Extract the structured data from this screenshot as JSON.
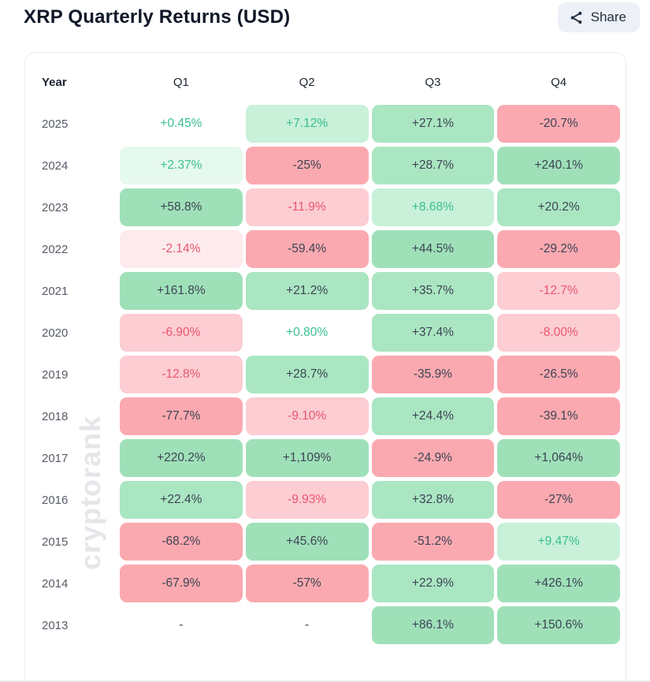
{
  "page": {
    "title": "XRP Quarterly Returns (USD)",
    "watermark": "cryptorank"
  },
  "share_button": {
    "label": "Share",
    "icon": "share-icon"
  },
  "chart_data": {
    "type": "heatmap",
    "title": "XRP Quarterly Returns (USD)",
    "columns": [
      "Year",
      "Q1",
      "Q2",
      "Q3",
      "Q4"
    ],
    "rows": [
      {
        "year": "2025",
        "cells": [
          {
            "text": "+0.45%",
            "tier": "g0"
          },
          {
            "text": "+7.12%",
            "tier": "g2"
          },
          {
            "text": "+27.1%",
            "tier": "g3"
          },
          {
            "text": "-20.7%",
            "tier": "r3"
          }
        ]
      },
      {
        "year": "2024",
        "cells": [
          {
            "text": "+2.37%",
            "tier": "g1"
          },
          {
            "text": "-25%",
            "tier": "r3"
          },
          {
            "text": "+28.7%",
            "tier": "g3"
          },
          {
            "text": "+240.1%",
            "tier": "g4"
          }
        ]
      },
      {
        "year": "2023",
        "cells": [
          {
            "text": "+58.8%",
            "tier": "g4"
          },
          {
            "text": "-11.9%",
            "tier": "r2"
          },
          {
            "text": "+8.68%",
            "tier": "g2"
          },
          {
            "text": "+20.2%",
            "tier": "g3"
          }
        ]
      },
      {
        "year": "2022",
        "cells": [
          {
            "text": "-2.14%",
            "tier": "r1"
          },
          {
            "text": "-59.4%",
            "tier": "r3"
          },
          {
            "text": "+44.5%",
            "tier": "g4"
          },
          {
            "text": "-29.2%",
            "tier": "r3"
          }
        ]
      },
      {
        "year": "2021",
        "cells": [
          {
            "text": "+161.8%",
            "tier": "g4"
          },
          {
            "text": "+21.2%",
            "tier": "g3"
          },
          {
            "text": "+35.7%",
            "tier": "g3"
          },
          {
            "text": "-12.7%",
            "tier": "r2"
          }
        ]
      },
      {
        "year": "2020",
        "cells": [
          {
            "text": "-6.90%",
            "tier": "r2"
          },
          {
            "text": "+0.80%",
            "tier": "g0"
          },
          {
            "text": "+37.4%",
            "tier": "g3"
          },
          {
            "text": "-8.00%",
            "tier": "r2"
          }
        ]
      },
      {
        "year": "2019",
        "cells": [
          {
            "text": "-12.8%",
            "tier": "r2"
          },
          {
            "text": "+28.7%",
            "tier": "g3"
          },
          {
            "text": "-35.9%",
            "tier": "r3"
          },
          {
            "text": "-26.5%",
            "tier": "r3"
          }
        ]
      },
      {
        "year": "2018",
        "cells": [
          {
            "text": "-77.7%",
            "tier": "r3"
          },
          {
            "text": "-9.10%",
            "tier": "r2"
          },
          {
            "text": "+24.4%",
            "tier": "g3"
          },
          {
            "text": "-39.1%",
            "tier": "r3"
          }
        ]
      },
      {
        "year": "2017",
        "cells": [
          {
            "text": "+220.2%",
            "tier": "g4"
          },
          {
            "text": "+1,109%",
            "tier": "g4"
          },
          {
            "text": "-24.9%",
            "tier": "r3"
          },
          {
            "text": "+1,064%",
            "tier": "g4"
          }
        ]
      },
      {
        "year": "2016",
        "cells": [
          {
            "text": "+22.4%",
            "tier": "g3"
          },
          {
            "text": "-9.93%",
            "tier": "r2"
          },
          {
            "text": "+32.8%",
            "tier": "g3"
          },
          {
            "text": "-27%",
            "tier": "r3"
          }
        ]
      },
      {
        "year": "2015",
        "cells": [
          {
            "text": "-68.2%",
            "tier": "r3"
          },
          {
            "text": "+45.6%",
            "tier": "g4"
          },
          {
            "text": "-51.2%",
            "tier": "r3"
          },
          {
            "text": "+9.47%",
            "tier": "g2"
          }
        ]
      },
      {
        "year": "2014",
        "cells": [
          {
            "text": "-67.9%",
            "tier": "r3"
          },
          {
            "text": "-57%",
            "tier": "r3"
          },
          {
            "text": "+22.9%",
            "tier": "g3"
          },
          {
            "text": "+426.1%",
            "tier": "g4"
          }
        ]
      },
      {
        "year": "2013",
        "cells": [
          {
            "text": "-",
            "tier": "none"
          },
          {
            "text": "-",
            "tier": "none"
          },
          {
            "text": "+86.1%",
            "tier": "g4"
          },
          {
            "text": "+150.6%",
            "tier": "g4"
          }
        ]
      }
    ]
  },
  "colors": {
    "tiers": {
      "g4": {
        "bg": "#9fe0b9",
        "text": "#3c4454"
      },
      "g3": {
        "bg": "#aae6c2",
        "text": "#3c4454"
      },
      "g2": {
        "bg": "#c9f0d9",
        "text": "#38bf8e"
      },
      "g1": {
        "bg": "#e6f9ee",
        "text": "#38bf8e"
      },
      "g0": {
        "bg": "transparent",
        "text": "#38bf8e"
      },
      "r3": {
        "bg": "#fba9b0",
        "text": "#3c4454"
      },
      "r2": {
        "bg": "#fccdd3",
        "text": "#e8566e"
      },
      "r1": {
        "bg": "#fdeaec",
        "text": "#e8566e"
      },
      "none": {
        "bg": "transparent",
        "text": "#3c4454"
      }
    },
    "accent_positive": "#38bf8e",
    "accent_negative": "#e8566e",
    "share_button_bg": "#edf0f6",
    "title_text": "#101828"
  }
}
